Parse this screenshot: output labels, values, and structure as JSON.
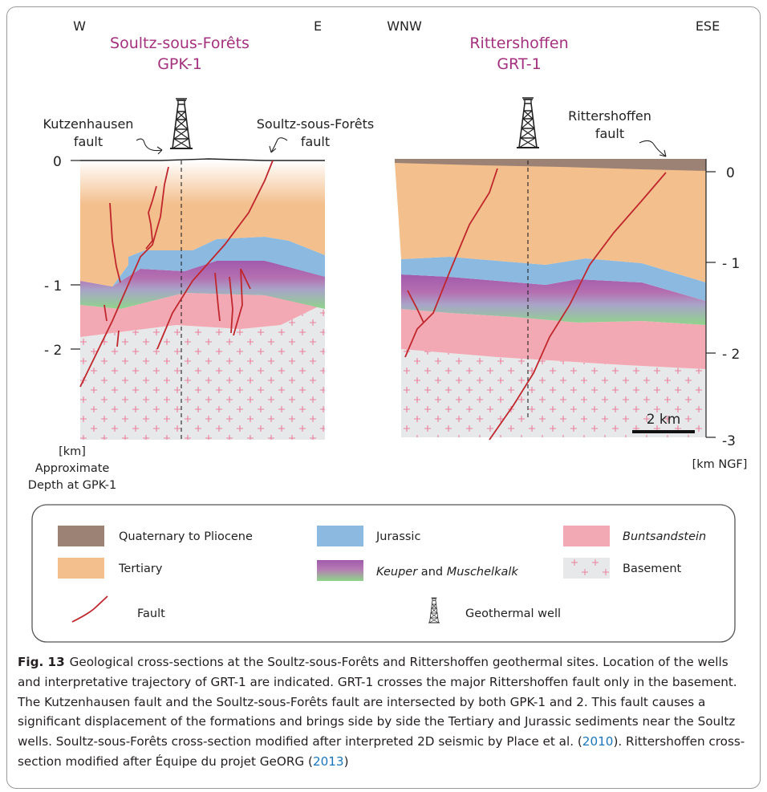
{
  "colors": {
    "quaternary": "#9c8275",
    "tertiary": "#f3bf8c",
    "jurassic": "#8cb9df",
    "keuper_top": "#a15aac",
    "keuper_bottom": "#8fd48a",
    "buntsandstein": "#f3a9b3",
    "basement": "#e7e8ea",
    "basement_cross": "#e8809a",
    "fault": "#c0272d",
    "well_title": "#a4317e"
  },
  "left_section": {
    "west": "W",
    "east": "E",
    "title_line1": "Soultz-sous-Forêts",
    "title_line2": "GPK-1",
    "fault_a_line1": "Kutzenhausen",
    "fault_a_line2": "fault",
    "fault_b_line1": "Soultz-sous-Forêts",
    "fault_b_line2": "fault",
    "axis_ticks": [
      "0",
      "- 1",
      "- 2"
    ],
    "axis_label_lines": [
      "[km]",
      "Approximate",
      "Depth at GPK-1"
    ]
  },
  "right_section": {
    "west": "WNW",
    "east": "ESE",
    "title_line1": "Rittershoffen",
    "title_line2": "GRT-1",
    "fault_line1": "Rittershoffen",
    "fault_line2": "fault",
    "axis_ticks": [
      "0",
      "- 1",
      "- 2",
      "-3"
    ],
    "axis_label": "[km NGF]",
    "scale_bar": "2 km"
  },
  "legend": {
    "quaternary": "Quaternary to Pliocene",
    "tertiary": "Tertiary",
    "jurassic": "Jurassic",
    "keuper_italic": "Keuper",
    "keuper_and": " and ",
    "muschelkalk_italic": "Muschelkalk",
    "buntsandstein": "Buntsandstein",
    "basement": "Basement",
    "fault": "Fault",
    "well": "Geothermal well"
  },
  "caption": {
    "label": "Fig. 13",
    "text1": "Geological cross-sections at the Soultz-sous-Forêts and Rittershoffen geothermal sites. Location of the wells and interpretative trajectory of GRT-1 are indicated. GRT-1 crosses the major Rittershoffen fault only in the basement. The Kutzenhausen fault and the Soultz-sous-Forêts fault are intersected by both GPK-1 and 2. This fault causes a significant displacement of the formations and brings side by side the Tertiary and Jurassic sediments near the Soultz wells. Soultz-sous-Forêts cross-section modified after interpreted 2D seismic by Place et al. (",
    "ref1": "2010",
    "text2": "). Rittershoffen cross-section modified after Équipe du projet GeORG (",
    "ref2": "2013",
    "text3": ")"
  }
}
